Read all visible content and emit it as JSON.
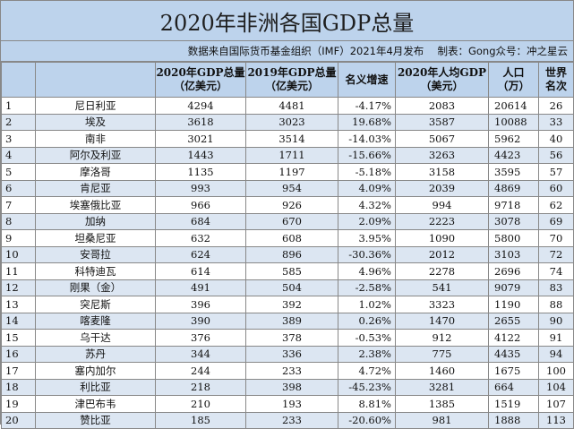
{
  "title": "2020年非洲各国GDP总量",
  "source": "数据来自国际货币基金组织（IMF）2021年4月发布　 制表：Gong众号：冲之星云",
  "headers": {
    "rank": "",
    "name": "",
    "gdp2020": [
      "2020年GDP总量",
      "（亿美元）"
    ],
    "gdp2019": [
      "2019年GDP总量",
      "（亿美元）"
    ],
    "growth": "名义增速",
    "percap": [
      "2020年人均GDP",
      "（美元）"
    ],
    "pop": [
      "人口",
      "（万）"
    ],
    "world": [
      "世界",
      "名次"
    ]
  },
  "rows": [
    {
      "rank": "1",
      "name": "尼日利亚",
      "gdp2020": "4294",
      "gdp2019": "4481",
      "growth": "-4.17%",
      "percap": "2083",
      "pop": "20614",
      "world": "26"
    },
    {
      "rank": "2",
      "name": "埃及",
      "gdp2020": "3618",
      "gdp2019": "3023",
      "growth": "19.68%",
      "percap": "3587",
      "pop": "10088",
      "world": "33"
    },
    {
      "rank": "3",
      "name": "南非",
      "gdp2020": "3021",
      "gdp2019": "3514",
      "growth": "-14.03%",
      "percap": "5067",
      "pop": "5962",
      "world": "40"
    },
    {
      "rank": "4",
      "name": "阿尔及利亚",
      "gdp2020": "1443",
      "gdp2019": "1711",
      "growth": "-15.66%",
      "percap": "3263",
      "pop": "4423",
      "world": "56"
    },
    {
      "rank": "5",
      "name": "摩洛哥",
      "gdp2020": "1135",
      "gdp2019": "1197",
      "growth": "-5.18%",
      "percap": "3158",
      "pop": "3595",
      "world": "57"
    },
    {
      "rank": "6",
      "name": "肯尼亚",
      "gdp2020": "993",
      "gdp2019": "954",
      "growth": "4.09%",
      "percap": "2039",
      "pop": "4869",
      "world": "60"
    },
    {
      "rank": "7",
      "name": "埃塞俄比亚",
      "gdp2020": "966",
      "gdp2019": "926",
      "growth": "4.32%",
      "percap": "994",
      "pop": "9718",
      "world": "62"
    },
    {
      "rank": "8",
      "name": "加纳",
      "gdp2020": "684",
      "gdp2019": "670",
      "growth": "2.09%",
      "percap": "2223",
      "pop": "3078",
      "world": "69"
    },
    {
      "rank": "9",
      "name": "坦桑尼亚",
      "gdp2020": "632",
      "gdp2019": "608",
      "growth": "3.95%",
      "percap": "1090",
      "pop": "5800",
      "world": "70"
    },
    {
      "rank": "10",
      "name": "安哥拉",
      "gdp2020": "624",
      "gdp2019": "896",
      "growth": "-30.36%",
      "percap": "2012",
      "pop": "3103",
      "world": "72"
    },
    {
      "rank": "11",
      "name": "科特迪瓦",
      "gdp2020": "614",
      "gdp2019": "585",
      "growth": "4.96%",
      "percap": "2278",
      "pop": "2696",
      "world": "74"
    },
    {
      "rank": "12",
      "name": "刚果（金）",
      "gdp2020": "491",
      "gdp2019": "504",
      "growth": "-2.58%",
      "percap": "541",
      "pop": "9079",
      "world": "83"
    },
    {
      "rank": "13",
      "name": "突尼斯",
      "gdp2020": "396",
      "gdp2019": "392",
      "growth": "1.02%",
      "percap": "3323",
      "pop": "1190",
      "world": "88"
    },
    {
      "rank": "14",
      "name": "喀麦隆",
      "gdp2020": "390",
      "gdp2019": "389",
      "growth": "0.26%",
      "percap": "1470",
      "pop": "2655",
      "world": "90"
    },
    {
      "rank": "15",
      "name": "乌干达",
      "gdp2020": "376",
      "gdp2019": "378",
      "growth": "-0.53%",
      "percap": "912",
      "pop": "4122",
      "world": "91"
    },
    {
      "rank": "16",
      "name": "苏丹",
      "gdp2020": "344",
      "gdp2019": "336",
      "growth": "2.38%",
      "percap": "775",
      "pop": "4435",
      "world": "94"
    },
    {
      "rank": "17",
      "name": "塞内加尔",
      "gdp2020": "244",
      "gdp2019": "233",
      "growth": "4.72%",
      "percap": "1460",
      "pop": "1675",
      "world": "100"
    },
    {
      "rank": "18",
      "name": "利比亚",
      "gdp2020": "218",
      "gdp2019": "398",
      "growth": "-45.23%",
      "percap": "3281",
      "pop": "664",
      "world": "104"
    },
    {
      "rank": "19",
      "name": "津巴布韦",
      "gdp2020": "210",
      "gdp2019": "193",
      "growth": "8.81%",
      "percap": "1385",
      "pop": "1519",
      "world": "107"
    },
    {
      "rank": "20",
      "name": "赞比亚",
      "gdp2020": "185",
      "gdp2019": "233",
      "growth": "-20.60%",
      "percap": "981",
      "pop": "1888",
      "world": "113"
    }
  ]
}
